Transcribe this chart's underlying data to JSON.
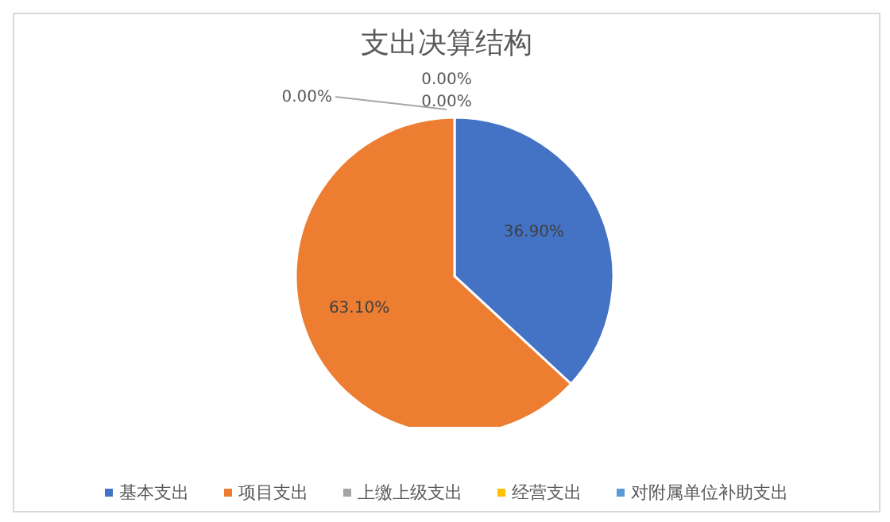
{
  "chart_data": {
    "type": "pie",
    "title": "支出决算结构",
    "categories": [
      "基本支出",
      "项目支出",
      "上缴上级支出",
      "经营支出",
      "对附属单位补助支出"
    ],
    "values": [
      36.9,
      63.1,
      0,
      0,
      0
    ],
    "value_labels": [
      "36.90%",
      "63.10%",
      "0.00%",
      "0.00%",
      "0.00%"
    ],
    "colors": [
      "#4472c4",
      "#ed7d31",
      "#a5a5a5",
      "#ffc000",
      "#5b9bd5"
    ],
    "legend": "bottom"
  }
}
